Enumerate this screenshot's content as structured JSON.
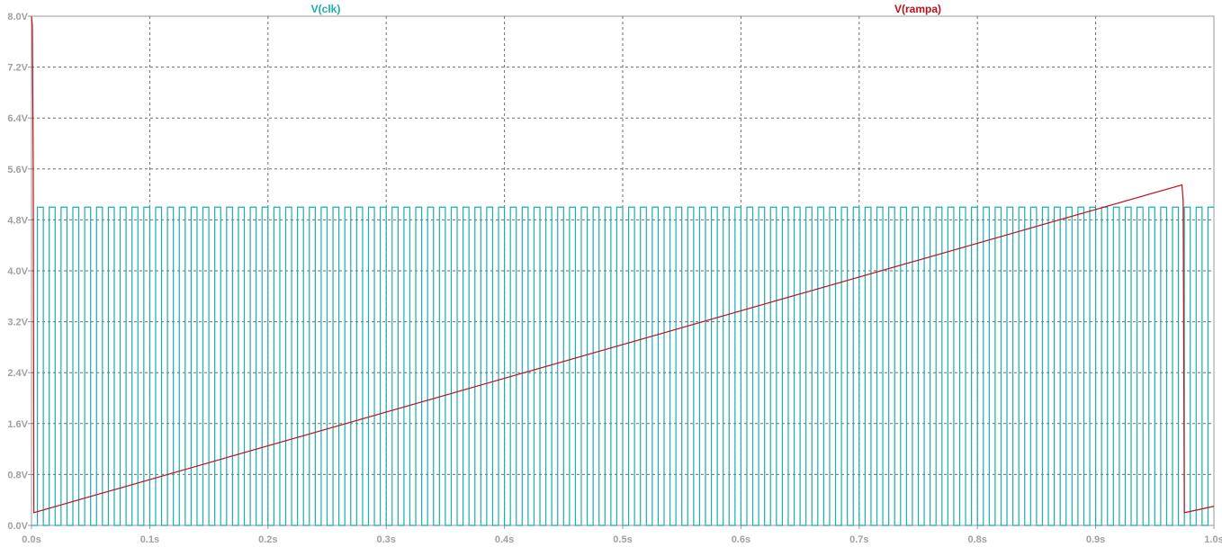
{
  "chart_data": {
    "type": "line",
    "x_ticks": [
      "0.0s",
      "0.1s",
      "0.2s",
      "0.3s",
      "0.4s",
      "0.5s",
      "0.6s",
      "0.7s",
      "0.8s",
      "0.9s",
      "1.0s"
    ],
    "y_ticks": [
      "0.0V",
      "0.8V",
      "1.6V",
      "2.4V",
      "3.2V",
      "4.0V",
      "4.8V",
      "5.6V",
      "6.4V",
      "7.2V",
      "8.0V"
    ],
    "xlim": [
      0,
      1.0
    ],
    "ylim": [
      0,
      8.0
    ],
    "grid": true,
    "grid_style": "dashed",
    "series": [
      {
        "name": "V(clk)",
        "color": "#1aaeae",
        "kind": "square_wave",
        "low": 0.0,
        "high": 5.0,
        "period": 0.01,
        "duty": 0.5,
        "start": 0.005,
        "end": 1.0
      },
      {
        "name": "V(rampa)",
        "color": "#c0101a",
        "kind": "piecewise",
        "points": [
          [
            0.0,
            8.0
          ],
          [
            0.0007,
            7.85
          ],
          [
            0.0015,
            5.6
          ],
          [
            0.002,
            0.2
          ],
          [
            0.973,
            5.35
          ],
          [
            0.974,
            5.1
          ],
          [
            0.975,
            0.2
          ],
          [
            1.0,
            0.3
          ]
        ]
      }
    ]
  }
}
